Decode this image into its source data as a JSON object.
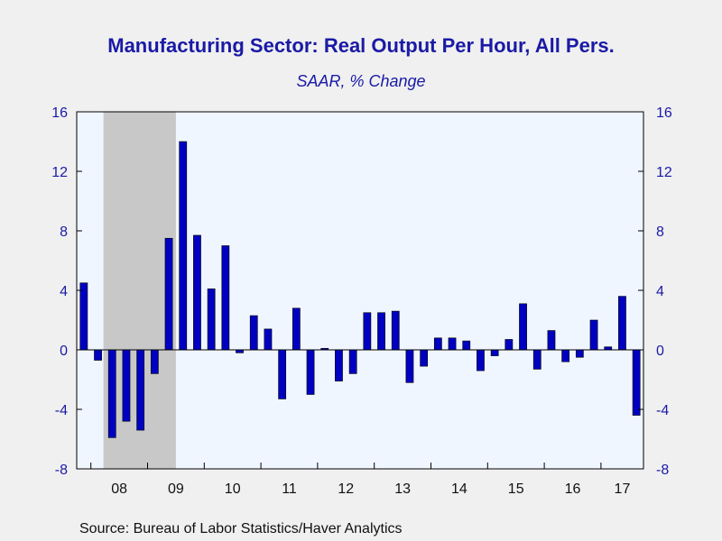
{
  "chart_data": {
    "type": "bar",
    "title": "Manufacturing Sector: Real Output Per Hour, All Pers.",
    "subtitle": "SAAR, % Change",
    "source": "Source:  Bureau of Labor Statistics/Haver Analytics",
    "ylim": [
      -8,
      16
    ],
    "yticks": [
      -8,
      -4,
      0,
      4,
      8,
      12,
      16
    ],
    "ytick_labels": [
      "-8",
      "-4",
      "0",
      "4",
      "8",
      "12",
      "16"
    ],
    "x_period_labels": [
      "08",
      "09",
      "10",
      "11",
      "12",
      "13",
      "14",
      "15",
      "16",
      "17"
    ],
    "x_start_quarter": "2007-Q4",
    "grid": false,
    "recession_shading": {
      "from": "2008-Q1",
      "to": "2009-Q2"
    },
    "colors": {
      "bar": "#0000c0",
      "recession": "#c8c8c8",
      "plot_bg": "#f0f6ff",
      "page_bg": "#f0f0f0",
      "axis_text": "#1a1aa6"
    },
    "series": [
      {
        "values": [
          4.5,
          -0.7,
          -5.9,
          -4.8,
          -5.4,
          -1.6,
          7.5,
          14.0,
          7.7,
          4.1,
          7.0,
          -0.2,
          2.3,
          1.4,
          -3.3,
          2.8,
          -3.0,
          0.1,
          -2.1,
          -1.6,
          2.5,
          2.5,
          2.6,
          -2.2,
          -1.1,
          0.8,
          0.8,
          0.6,
          -1.4,
          -0.4,
          0.7,
          3.1,
          -1.3,
          1.3,
          -0.8,
          -0.5,
          2.0,
          0.2,
          3.6,
          -4.4
        ]
      }
    ]
  }
}
